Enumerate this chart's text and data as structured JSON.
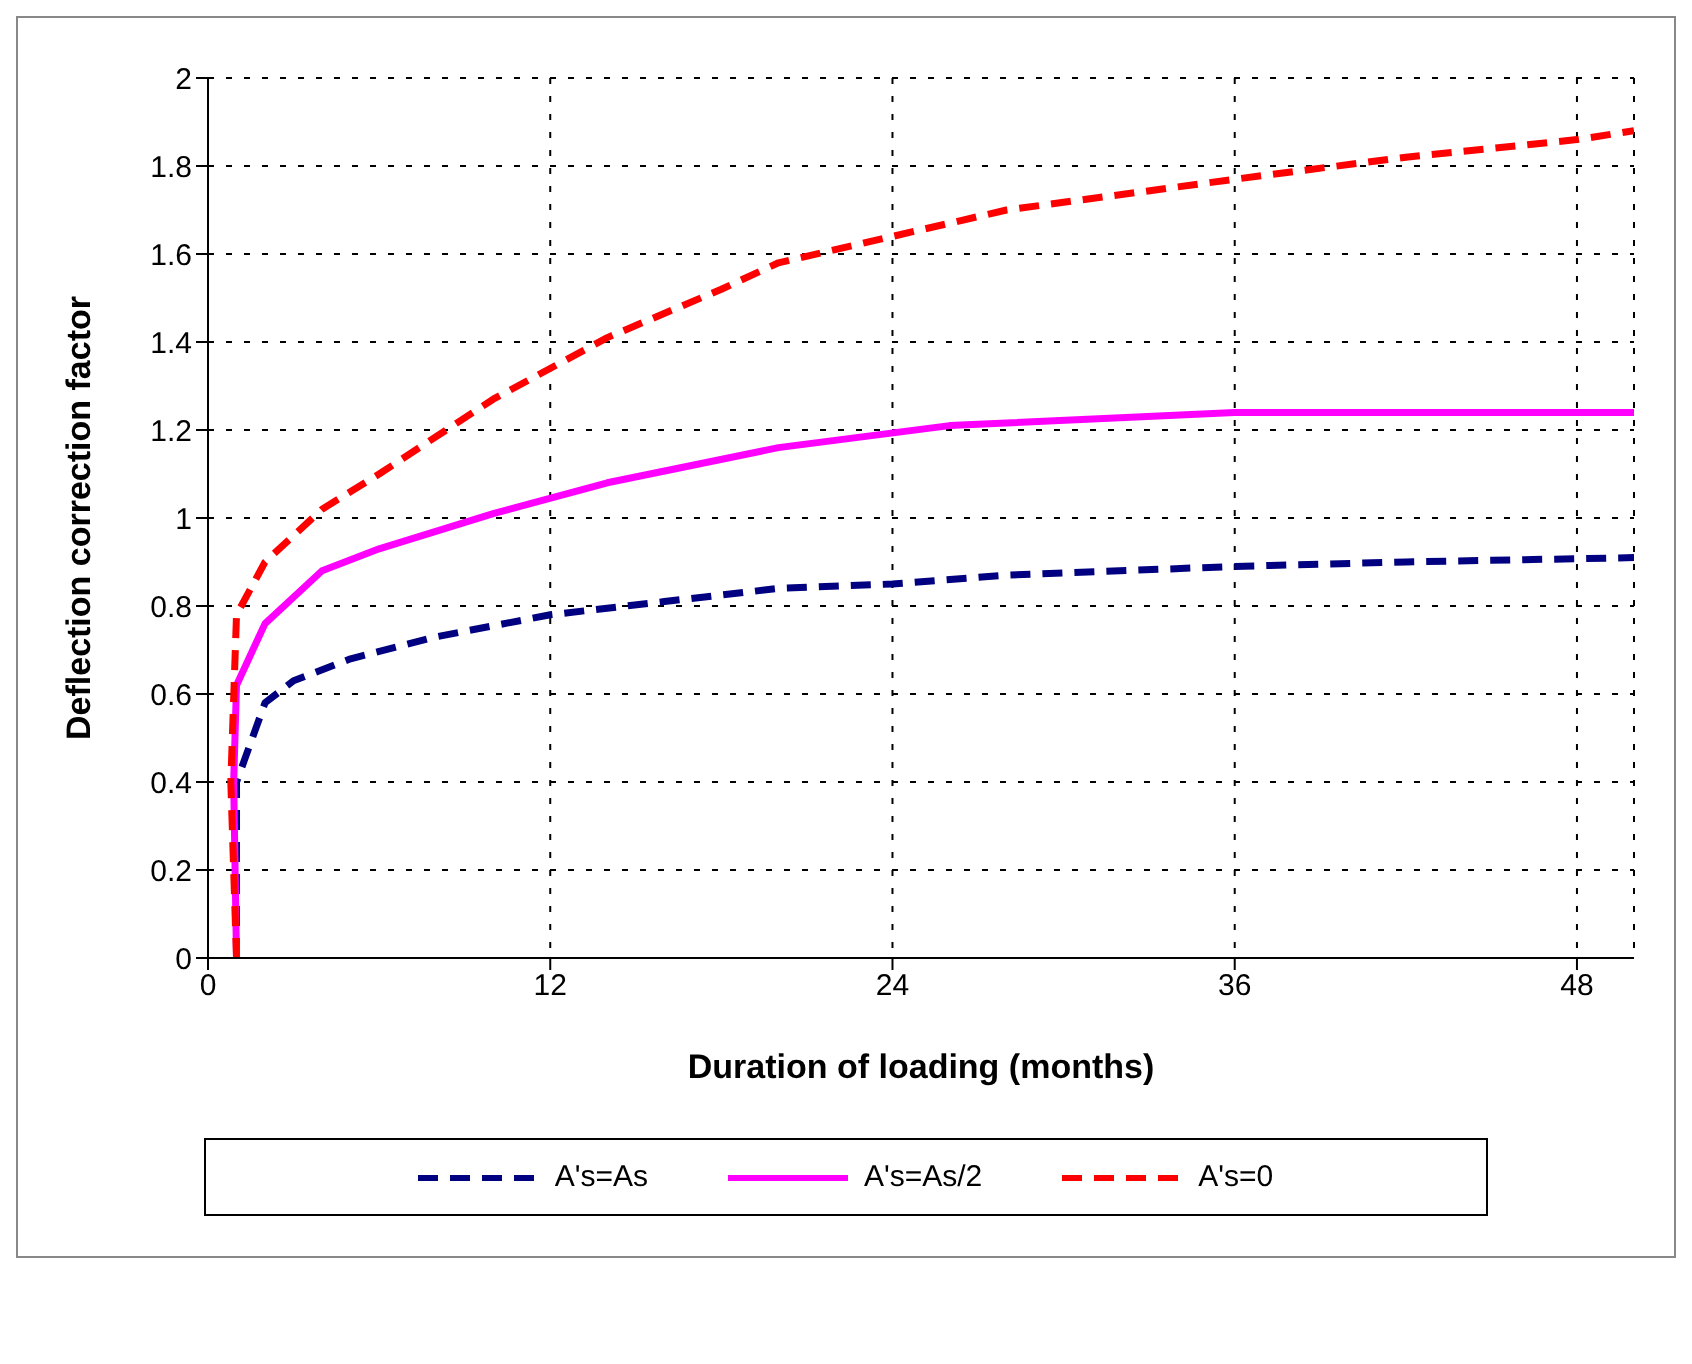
{
  "chart_data": {
    "type": "line",
    "xlabel": "Duration of loading (months)",
    "ylabel": "Deflection correction factor",
    "xlim": [
      0,
      50
    ],
    "xticks": [
      0,
      12,
      24,
      36,
      48
    ],
    "ylim": [
      0,
      2
    ],
    "yticks": [
      0,
      0.2,
      0.4,
      0.6,
      0.8,
      1,
      1.2,
      1.4,
      1.6,
      1.8,
      2
    ],
    "grid": true,
    "legend": "bottom",
    "marker": "none",
    "series": [
      {
        "name": "A's=As",
        "color": "#000080",
        "line_style": "dashed",
        "x": [
          1,
          1,
          2,
          3,
          5,
          8,
          12,
          16,
          20,
          24,
          28,
          36,
          42,
          50
        ],
        "values": [
          0,
          0.4,
          0.58,
          0.63,
          0.68,
          0.73,
          0.78,
          0.81,
          0.84,
          0.85,
          0.87,
          0.89,
          0.9,
          0.91
        ]
      },
      {
        "name": "A's=As/2",
        "color": "#ff00ff",
        "line_style": "solid",
        "x": [
          1,
          0.9,
          1,
          2,
          4,
          6,
          10,
          14,
          20,
          26,
          36,
          50
        ],
        "values": [
          0,
          0.4,
          0.62,
          0.76,
          0.88,
          0.93,
          1.01,
          1.08,
          1.16,
          1.21,
          1.24,
          1.24
        ]
      },
      {
        "name": "A's=0",
        "color": "#ff0000",
        "line_style": "dashed",
        "x": [
          1,
          0.8,
          1,
          2,
          4,
          6,
          10,
          14,
          18,
          20,
          24,
          28,
          36,
          42,
          48,
          50
        ],
        "values": [
          0,
          0.4,
          0.78,
          0.9,
          1.02,
          1.1,
          1.27,
          1.41,
          1.52,
          1.58,
          1.64,
          1.7,
          1.77,
          1.82,
          1.86,
          1.88
        ]
      }
    ]
  }
}
